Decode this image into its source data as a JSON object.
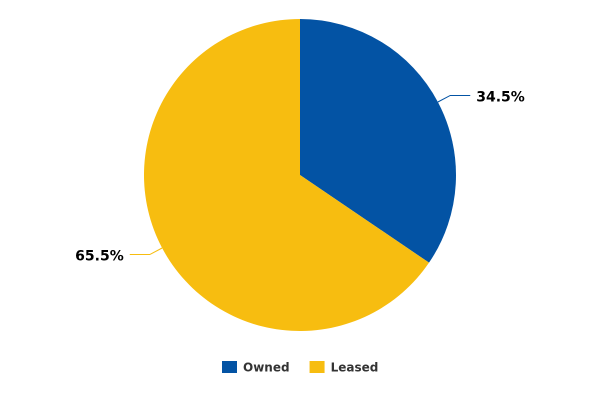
{
  "chart_data": {
    "type": "pie",
    "categories": [
      "Owned",
      "Leased"
    ],
    "values": [
      34.5,
      65.5
    ],
    "value_labels": [
      "34.5%",
      "65.5%"
    ],
    "colors": [
      "#0353a4",
      "#f7bd10"
    ],
    "legend": "bottom"
  }
}
